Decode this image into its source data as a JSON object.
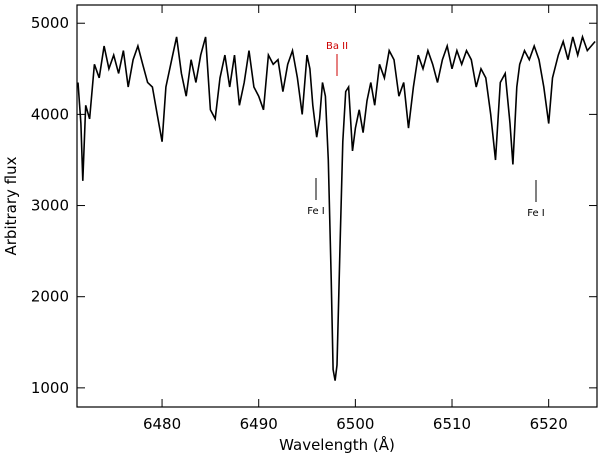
{
  "chart_data": {
    "type": "line",
    "xlabel": "Wavelength (Å)",
    "ylabel": "Arbitrary flux",
    "xlim": [
      6471.2,
      6525
    ],
    "ylim": [
      790,
      5200
    ],
    "xticks": [
      6480,
      6490,
      6500,
      6510,
      6520
    ],
    "yticks": [
      1000,
      2000,
      3000,
      4000,
      5000
    ],
    "annotations": [
      {
        "text": "Ba II",
        "color": "#cc0000"
      },
      {
        "text": "Fe I",
        "color": "#000000"
      },
      {
        "text": "Fe I",
        "color": "#000000"
      }
    ],
    "x": [
      6471.3,
      6471.6,
      6471.8,
      6472.1,
      6472.5,
      6473,
      6473.5,
      6474,
      6474.5,
      6475,
      6475.5,
      6476,
      6476.5,
      6477,
      6477.5,
      6478,
      6478.5,
      6479,
      6479.5,
      6480,
      6480.4,
      6481,
      6481.5,
      6482,
      6482.5,
      6483,
      6483.5,
      6484,
      6484.5,
      6485,
      6485.5,
      6486,
      6486.5,
      6487,
      6487.5,
      6488,
      6488.5,
      6489,
      6489.5,
      6490,
      6490.5,
      6491,
      6491.5,
      6492,
      6492.5,
      6493,
      6493.5,
      6494,
      6494.5,
      6495,
      6495.3,
      6495.6,
      6496,
      6496.3,
      6496.6,
      6496.9,
      6497.2,
      6497.5,
      6497.7,
      6497.9,
      6498.1,
      6498.4,
      6498.7,
      6499,
      6499.3,
      6499.7,
      6500,
      6500.4,
      6500.8,
      6501.2,
      6501.6,
      6502,
      6502.5,
      6503,
      6503.5,
      6504,
      6504.5,
      6505,
      6505.5,
      6506,
      6506.5,
      6507,
      6507.5,
      6508,
      6508.5,
      6509,
      6509.5,
      6510,
      6510.5,
      6511,
      6511.5,
      6512,
      6512.5,
      6513,
      6513.5,
      6514,
      6514.5,
      6515,
      6515.5,
      6516,
      6516.3,
      6516.7,
      6517,
      6517.5,
      6518,
      6518.5,
      6519,
      6519.5,
      6520,
      6520.4,
      6521,
      6521.5,
      6522,
      6522.5,
      6523,
      6523.5,
      6524,
      6524.8
    ],
    "series": [
      {
        "color": "#000000",
        "values": [
          4350,
          3900,
          3270,
          4100,
          3950,
          4550,
          4400,
          4750,
          4500,
          4650,
          4450,
          4700,
          4300,
          4600,
          4750,
          4550,
          4350,
          4300,
          4000,
          3700,
          4300,
          4600,
          4850,
          4450,
          4200,
          4600,
          4350,
          4650,
          4850,
          4050,
          3950,
          4400,
          4650,
          4300,
          4650,
          4100,
          4350,
          4700,
          4300,
          4200,
          4050,
          4650,
          4550,
          4600,
          4250,
          4550,
          4700,
          4400,
          4000,
          4650,
          4500,
          4100,
          3750,
          3950,
          4350,
          4200,
          3500,
          2200,
          1200,
          1080,
          1250,
          2500,
          3700,
          4250,
          4300,
          3600,
          3850,
          4050,
          3800,
          4150,
          4350,
          4100,
          4550,
          4400,
          4700,
          4600,
          4200,
          4350,
          3850,
          4300,
          4650,
          4500,
          4700,
          4550,
          4350,
          4600,
          4750,
          4500,
          4700,
          4550,
          4700,
          4600,
          4300,
          4500,
          4400,
          4000,
          3500,
          4350,
          4450,
          3900,
          3450,
          4300,
          4550,
          4700,
          4600,
          4750,
          4600,
          4300,
          3900,
          4400,
          4650,
          4800,
          4600,
          4850,
          4650,
          4850,
          4700,
          4800
        ]
      }
    ]
  }
}
